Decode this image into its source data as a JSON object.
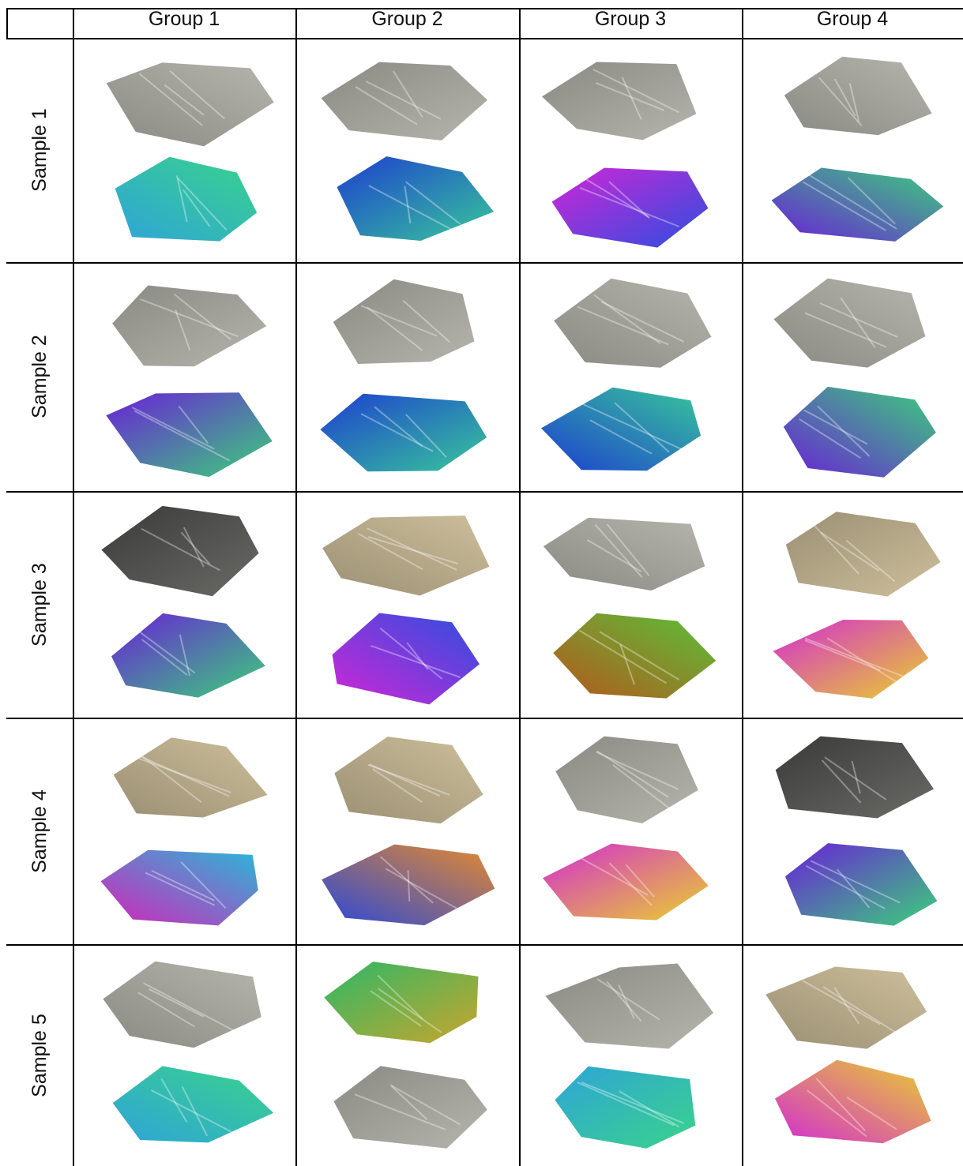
{
  "table": {
    "columns": [
      "Group 1",
      "Group 2",
      "Group 3",
      "Group 4"
    ],
    "rows": [
      {
        "label": "Sample 1",
        "cells": [
          {
            "top": "gray",
            "bottom": "cyan-green"
          },
          {
            "top": "gray",
            "bottom": "blue-green"
          },
          {
            "top": "gray",
            "bottom": "magenta-blue"
          },
          {
            "top": "gray",
            "bottom": "magenta-green"
          }
        ]
      },
      {
        "label": "Sample 2",
        "cells": [
          {
            "top": "gray",
            "bottom": "magenta-green"
          },
          {
            "top": "gray",
            "bottom": "blue-green"
          },
          {
            "top": "gray",
            "bottom": "blue-green"
          },
          {
            "top": "gray",
            "bottom": "magenta-green"
          }
        ]
      },
      {
        "label": "Sample 3",
        "cells": [
          {
            "top": "dark-gray",
            "bottom": "magenta-green"
          },
          {
            "top": "tan",
            "bottom": "magenta-blue"
          },
          {
            "top": "gray",
            "bottom": "orange-green"
          },
          {
            "top": "tan",
            "bottom": "rainbow"
          }
        ]
      },
      {
        "label": "Sample 4",
        "cells": [
          {
            "top": "tan",
            "bottom": "magenta-cyan"
          },
          {
            "top": "tan",
            "bottom": "blue-orange"
          },
          {
            "top": "gray",
            "bottom": "rainbow"
          },
          {
            "top": "dark-gray",
            "bottom": "magenta-green"
          }
        ]
      },
      {
        "label": "Sample 5",
        "cells": [
          {
            "top": "gray",
            "bottom": "cyan-green"
          },
          {
            "top": "green-olive",
            "bottom": "gray"
          },
          {
            "top": "gray",
            "bottom": "cyan-green"
          },
          {
            "top": "tan",
            "bottom": "rainbow"
          }
        ]
      }
    ]
  },
  "palette": {
    "gray": [
      "#8a8a84",
      "#b5b5ad"
    ],
    "dark-gray": [
      "#3a3a3a",
      "#6a6a66"
    ],
    "tan": [
      "#9b8f74",
      "#cdbf9b"
    ],
    "cyan-green": [
      "#2fa4d8",
      "#39d38a"
    ],
    "blue-green": [
      "#1d3fd0",
      "#38c79a"
    ],
    "magenta-blue": [
      "#d026d6",
      "#2b4fe0"
    ],
    "magenta-green": [
      "#6a1fd8",
      "#3bd07a"
    ],
    "magenta-cyan": [
      "#d325b9",
      "#2ab7d8"
    ],
    "orange-green": [
      "#b4581c",
      "#58c23a"
    ],
    "rainbow": [
      "#d32cd1",
      "#e9d12d"
    ],
    "blue-orange": [
      "#2a48d8",
      "#e78a2c"
    ],
    "green-olive": [
      "#2bb866",
      "#c9a52d"
    ]
  }
}
